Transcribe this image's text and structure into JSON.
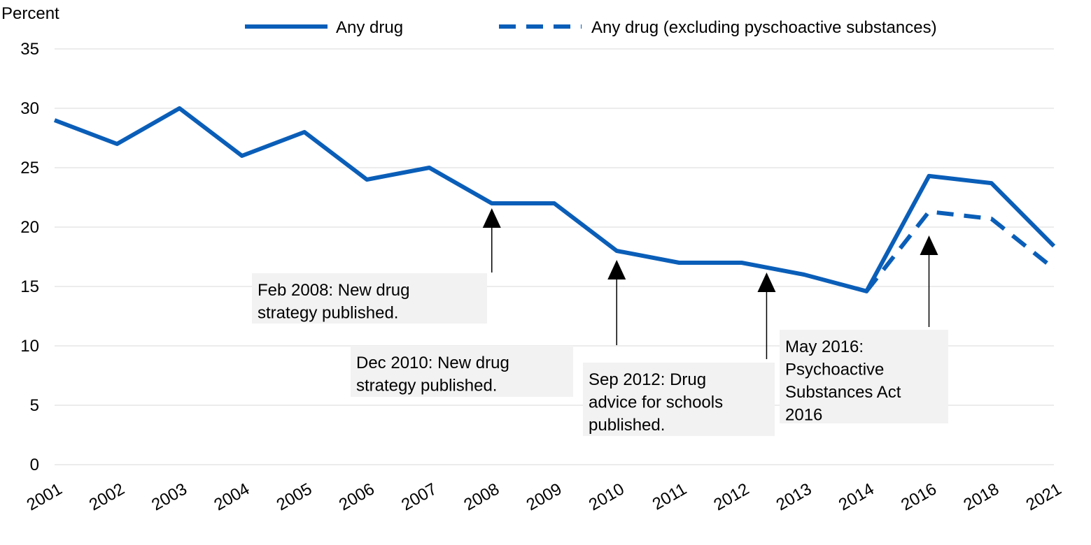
{
  "chart_data": {
    "type": "line",
    "ylabel": "Percent",
    "ylim": [
      0,
      35
    ],
    "yticks": [
      "0",
      "5",
      "10",
      "15",
      "20",
      "25",
      "30",
      "35"
    ],
    "x_tick_labels": [
      "2001",
      "2002",
      "2003",
      "2004",
      "2005",
      "2006",
      "2007",
      "2008",
      "2009",
      "2010",
      "2011",
      "2012",
      "2013",
      "2014",
      "2016",
      "2018",
      "2021"
    ],
    "grid": true,
    "legend_position": "top",
    "series": [
      {
        "name": "Any drug",
        "style": "solid",
        "color": "#0a5eb8",
        "points": [
          {
            "x": "2001",
            "y": 29
          },
          {
            "x": "2002",
            "y": 27
          },
          {
            "x": "2003",
            "y": 30
          },
          {
            "x": "2004",
            "y": 26
          },
          {
            "x": "2005",
            "y": 28
          },
          {
            "x": "2006",
            "y": 24
          },
          {
            "x": "2007",
            "y": 25
          },
          {
            "x": "2008",
            "y": 22
          },
          {
            "x": "2009",
            "y": 22
          },
          {
            "x": "2010",
            "y": 18
          },
          {
            "x": "2011",
            "y": 17
          },
          {
            "x": "2012",
            "y": 17
          },
          {
            "x": "2013",
            "y": 16
          },
          {
            "x": "2014",
            "y": 14.6
          },
          {
            "x": "2016",
            "y": 24.3
          },
          {
            "x": "2018",
            "y": 23.7
          },
          {
            "x": "2021",
            "y": 18.4
          }
        ]
      },
      {
        "name": "Any drug (excluding pyschoactive substances)",
        "style": "dashed",
        "color": "#0a5eb8",
        "points": [
          {
            "x": "2014",
            "y": 14.6
          },
          {
            "x": "2016",
            "y": 21.3
          },
          {
            "x": "2018",
            "y": 20.7
          },
          {
            "x": "2021",
            "y": 16.5
          }
        ]
      }
    ],
    "annotations": [
      {
        "lines": [
          "Feb 2008: New drug",
          "strategy published."
        ],
        "x_value": 2008
      },
      {
        "lines": [
          "Dec 2010: New drug",
          "strategy published."
        ],
        "x_value": 2010
      },
      {
        "lines": [
          "Sep 2012: Drug",
          "advice for schools",
          "published."
        ],
        "x_value": 2012.4
      },
      {
        "lines": [
          "May 2016:",
          "Psychoactive",
          "Substances Act",
          "2016"
        ],
        "x_value": 2016
      }
    ]
  }
}
